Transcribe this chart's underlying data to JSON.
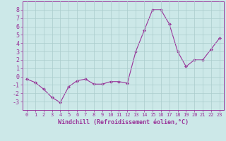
{
  "x": [
    0,
    1,
    2,
    3,
    4,
    5,
    6,
    7,
    8,
    9,
    10,
    11,
    12,
    13,
    14,
    15,
    16,
    17,
    18,
    19,
    20,
    21,
    22,
    23
  ],
  "y": [
    -0.3,
    -0.7,
    -1.5,
    -2.5,
    -3.1,
    -1.2,
    -0.5,
    -0.3,
    -0.9,
    -0.9,
    -0.6,
    -0.6,
    -0.8,
    3.0,
    5.5,
    8.0,
    8.0,
    6.3,
    3.0,
    1.2,
    2.0,
    2.0,
    3.3,
    4.6
  ],
  "line_color": "#993399",
  "marker": "D",
  "marker_size": 2,
  "bg_color": "#cce8e8",
  "grid_color": "#aacccc",
  "xlabel": "Windchill (Refroidissement éolien,°C)",
  "ylim": [
    -4,
    9
  ],
  "xlim": [
    -0.5,
    23.5
  ],
  "yticks": [
    -3,
    -2,
    -1,
    0,
    1,
    2,
    3,
    4,
    5,
    6,
    7,
    8
  ],
  "xticks": [
    0,
    1,
    2,
    3,
    4,
    5,
    6,
    7,
    8,
    9,
    10,
    11,
    12,
    13,
    14,
    15,
    16,
    17,
    18,
    19,
    20,
    21,
    22,
    23
  ],
  "tick_color": "#993399",
  "label_color": "#993399",
  "spine_color": "#993399",
  "font_color": "#993399"
}
